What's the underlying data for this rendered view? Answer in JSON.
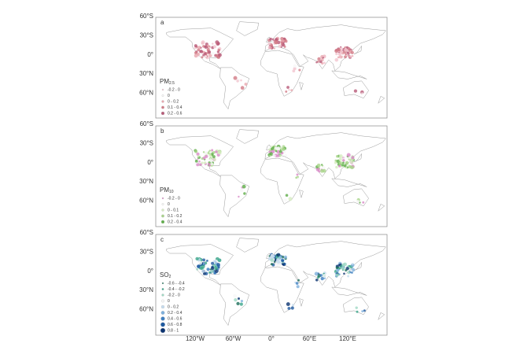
{
  "panels": [
    {
      "label": "a",
      "legend_title": "PM",
      "legend_title_sub": "2.5",
      "legend": [
        {
          "label": "-0.2 - 0",
          "color": "#f2c6d0"
        },
        {
          "label": "0",
          "color": "#f7f7f7"
        },
        {
          "label": "0 - 0.2",
          "color": "#e9a6ae"
        },
        {
          "label": "0.1 - 0.4",
          "color": "#d27a86"
        },
        {
          "label": "0.2 - 0.6",
          "color": "#b85a78"
        }
      ]
    },
    {
      "label": "b",
      "legend_title": "PM",
      "legend_title_sub": "10",
      "legend": [
        {
          "label": "-0.2 - 0",
          "color": "#d98ac8"
        },
        {
          "label": "0",
          "color": "#f7f7f7"
        },
        {
          "label": "0 - 0.1",
          "color": "#d6ecc0"
        },
        {
          "label": "0.1 - 0.2",
          "color": "#a8d48a"
        },
        {
          "label": "0.2 - 0.4",
          "color": "#5fae48"
        }
      ]
    },
    {
      "label": "c",
      "legend_title": "SO",
      "legend_title_sub": "2",
      "legend": [
        {
          "label": "-0.6 - -0.4",
          "color": "#1b6e5a"
        },
        {
          "label": "-0.4 - -0.2",
          "color": "#3aa58a"
        },
        {
          "label": "-0.2 - 0",
          "color": "#9fd8c4"
        },
        {
          "label": "0",
          "color": "#f7f7f7"
        },
        {
          "label": "0 - 0.2",
          "color": "#c6dcef"
        },
        {
          "label": "0.2 - 0.4",
          "color": "#7fb0dc"
        },
        {
          "label": "0.4 - 0.6",
          "color": "#3f7fc0"
        },
        {
          "label": "0.6 - 0.8",
          "color": "#1f5aa0"
        },
        {
          "label": "0.8 - 1",
          "color": "#0b3370"
        }
      ]
    }
  ],
  "lat_ticks": [
    "60°N",
    "30°N",
    "0°",
    "30°S",
    "60°S"
  ],
  "lon_ticks": [
    "120°W",
    "60°W",
    "0°",
    "60°E",
    "120°E"
  ]
}
